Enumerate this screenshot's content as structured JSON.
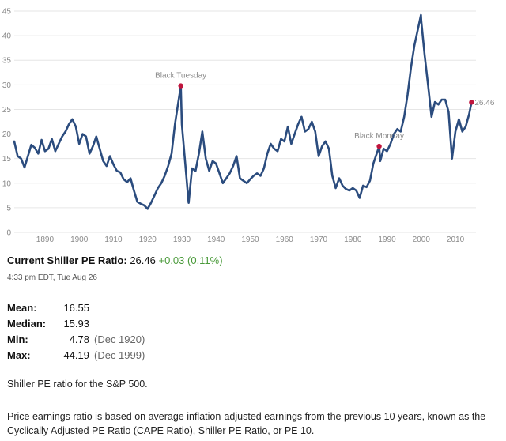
{
  "chart_data": {
    "type": "line",
    "title": "Shiller PE Ratio",
    "xlim": [
      1881,
      2016
    ],
    "ylim": [
      0,
      45
    ],
    "x_ticks": [
      1890,
      1900,
      1910,
      1920,
      1930,
      1940,
      1950,
      1960,
      1970,
      1980,
      1990,
      2000,
      2010
    ],
    "y_ticks": [
      0,
      5,
      10,
      15,
      20,
      25,
      30,
      35,
      40,
      45
    ],
    "grid": "horizontal",
    "series": [
      {
        "name": "Shiller PE Ratio",
        "color": "#2b4c7e",
        "x": [
          1881,
          1882,
          1883,
          1884,
          1885,
          1886,
          1887,
          1888,
          1889,
          1890,
          1891,
          1892,
          1893,
          1894,
          1895,
          1896,
          1897,
          1898,
          1899,
          1900,
          1901,
          1902,
          1903,
          1904,
          1905,
          1906,
          1907,
          1908,
          1909,
          1910,
          1911,
          1912,
          1913,
          1914,
          1915,
          1916,
          1917,
          1918,
          1919,
          1920,
          1921,
          1922,
          1923,
          1924,
          1925,
          1926,
          1927,
          1928,
          1929.7,
          1930,
          1931,
          1932,
          1933,
          1934,
          1935,
          1936,
          1937,
          1938,
          1939,
          1940,
          1941,
          1942,
          1943,
          1944,
          1945,
          1946,
          1947,
          1948,
          1949,
          1950,
          1951,
          1952,
          1953,
          1954,
          1955,
          1956,
          1957,
          1958,
          1959,
          1960,
          1961,
          1962,
          1963,
          1964,
          1965,
          1966,
          1967,
          1968,
          1969,
          1970,
          1971,
          1972,
          1973,
          1974,
          1975,
          1976,
          1977,
          1978,
          1979,
          1980,
          1981,
          1982,
          1983,
          1984,
          1985,
          1986,
          1987.7,
          1988,
          1989,
          1990,
          1991,
          1992,
          1993,
          1994,
          1995,
          1996,
          1997,
          1998,
          1999.9,
          2000,
          2001,
          2002,
          2003,
          2004,
          2005,
          2006,
          2007,
          2008,
          2009,
          2010,
          2011,
          2012,
          2013,
          2014,
          2014.7
        ],
        "values": [
          18.5,
          15.5,
          15.0,
          13.2,
          15.5,
          17.8,
          17.2,
          16.0,
          18.8,
          16.5,
          17.0,
          19.0,
          16.5,
          18.0,
          19.5,
          20.5,
          22.0,
          23.0,
          21.5,
          18.0,
          20.0,
          19.5,
          16.0,
          17.5,
          19.5,
          17.0,
          14.5,
          13.5,
          15.5,
          13.8,
          12.5,
          12.2,
          10.8,
          10.2,
          11.0,
          8.5,
          6.2,
          5.8,
          5.5,
          4.78,
          6.0,
          7.5,
          9.0,
          10.0,
          11.5,
          13.5,
          16.0,
          22.0,
          29.8,
          22.0,
          14.0,
          6.0,
          13.0,
          12.5,
          16.0,
          20.5,
          15.0,
          12.5,
          14.5,
          14.0,
          12.0,
          10.0,
          11.0,
          12.0,
          13.5,
          15.5,
          11.0,
          10.5,
          10.0,
          10.8,
          11.5,
          12.0,
          11.5,
          13.0,
          16.0,
          18.0,
          17.0,
          16.5,
          19.0,
          18.5,
          21.5,
          18.0,
          20.0,
          22.0,
          23.5,
          20.5,
          21.0,
          22.5,
          20.5,
          15.5,
          17.5,
          18.5,
          17.0,
          11.5,
          9.0,
          11.0,
          9.5,
          8.8,
          8.5,
          9.0,
          8.5,
          7.0,
          9.5,
          9.2,
          10.5,
          14.0,
          17.5,
          14.5,
          17.0,
          16.5,
          18.0,
          20.0,
          21.0,
          20.5,
          23.5,
          28.0,
          33.5,
          38.0,
          44.19,
          43.0,
          36.0,
          30.0,
          23.5,
          26.5,
          26.0,
          27.0,
          27.0,
          24.5,
          15.0,
          20.5,
          23.0,
          20.5,
          21.5,
          24.0,
          26.46
        ]
      }
    ],
    "annotations": [
      {
        "text": "Black Tuesday",
        "x": 1929.7,
        "y": 29.8
      },
      {
        "text": "Black Monday",
        "x": 1987.7,
        "y": 17.5
      }
    ],
    "current_label": "26.46"
  },
  "headline": {
    "label": "Current Shiller PE Ratio:",
    "value": "26.46",
    "change": "+0.03 (0.11%)"
  },
  "timestamp": "4:33 pm EDT, Tue Aug 26",
  "stats": [
    {
      "label": "Mean:",
      "value": "16.55",
      "date": ""
    },
    {
      "label": "Median:",
      "value": "15.93",
      "date": ""
    },
    {
      "label": "Min:",
      "value": "4.78",
      "date": "(Dec 1920)"
    },
    {
      "label": "Max:",
      "value": "44.19",
      "date": "(Dec 1999)"
    }
  ],
  "description": {
    "line1": "Shiller PE ratio for the S&P 500.",
    "line2": "Price earnings ratio is based on average inflation-adjusted earnings from the previous 10 years, known as the Cyclically Adjusted PE Ratio (CAPE Ratio), Shiller PE Ratio, or PE 10."
  },
  "colors": {
    "line": "#2b4c7e",
    "marker": "#c0143c",
    "change": "#4a9a3a",
    "grid": "#e6e6e6"
  }
}
